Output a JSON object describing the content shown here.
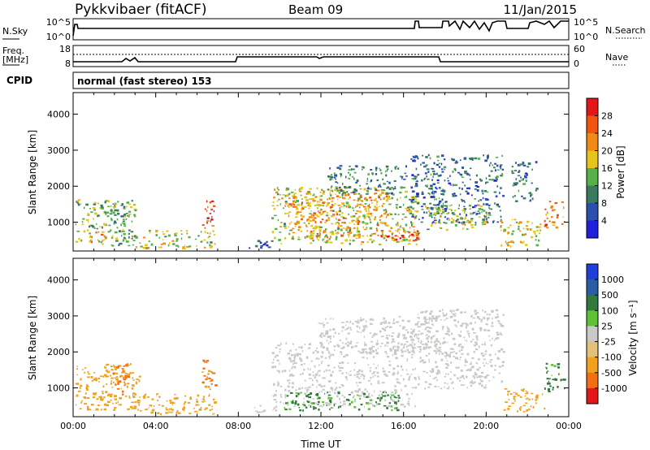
{
  "header": {
    "site": "Pykkvibaer (fitACF)",
    "beam": "Beam 09",
    "date": "11/Jan/2015"
  },
  "top_panel": {
    "left_label": "N.Sky",
    "left_ticks": [
      "10^5",
      "10^0"
    ],
    "right_ticks": [
      "10^5",
      "10^0"
    ],
    "right_label": "N.Search"
  },
  "freq_panel": {
    "left_label_1": "Freq.",
    "left_label_2": "[MHz]",
    "left_ticks": [
      "18",
      "8"
    ],
    "right_ticks": [
      "60",
      "0"
    ],
    "right_label": "Nave"
  },
  "cpid": {
    "label": "CPID",
    "value": "normal (fast stereo) 153"
  },
  "colors": {
    "power": [
      "#1f1fdc",
      "#2b4fae",
      "#3a7a5e",
      "#56b148",
      "#e6c41a",
      "#f08a12",
      "#f0540f",
      "#e3171a"
    ],
    "velocity": [
      "#1f3fd8",
      "#2a5ea4",
      "#2f7a3c",
      "#5fc236",
      "#c9c9c6",
      "#e2c27a",
      "#f0a21c",
      "#f07012",
      "#e3171a"
    ],
    "ground_scatter": "#c8c8c4"
  },
  "chart_data": [
    {
      "type": "heatmap",
      "name": "power",
      "ylabel": "Slant Range [km]",
      "yticks": [
        "1000",
        "2000",
        "3000",
        "4000"
      ],
      "ylim": [
        200,
        4600
      ],
      "xlim": [
        0,
        24
      ],
      "colorbar_label": "Power [dB]",
      "colorbar_ticks": [
        "4",
        "8",
        "12",
        "16",
        "20",
        "24",
        "28"
      ],
      "regions": [
        {
          "t0": 0.1,
          "t1": 3.0,
          "r0": 350,
          "r1": 1650,
          "v": 14
        },
        {
          "t0": 0.8,
          "t1": 1.6,
          "r0": 450,
          "r1": 800,
          "v": 24
        },
        {
          "t0": 1.8,
          "t1": 2.6,
          "r0": 900,
          "r1": 1600,
          "v": 12
        },
        {
          "t0": 2.8,
          "t1": 6.9,
          "r0": 300,
          "r1": 800,
          "v": 16
        },
        {
          "t0": 6.2,
          "t1": 6.8,
          "r0": 850,
          "r1": 1700,
          "v": 26
        },
        {
          "t0": 8.5,
          "t1": 9.7,
          "r0": 300,
          "r1": 550,
          "v": 6
        },
        {
          "t0": 9.6,
          "t1": 16.7,
          "r0": 400,
          "r1": 2000,
          "v": 16
        },
        {
          "t0": 10.4,
          "t1": 15.2,
          "r0": 600,
          "r1": 1900,
          "v": 22
        },
        {
          "t0": 14.8,
          "t1": 16.7,
          "r0": 450,
          "r1": 800,
          "v": 28
        },
        {
          "t0": 12.3,
          "t1": 16.1,
          "r0": 1800,
          "r1": 2600,
          "v": 10
        },
        {
          "t0": 16.3,
          "t1": 20.8,
          "r0": 1000,
          "r1": 2900,
          "v": 8
        },
        {
          "t0": 17.0,
          "t1": 20.0,
          "r0": 800,
          "r1": 1500,
          "v": 16
        },
        {
          "t0": 20.6,
          "t1": 22.6,
          "r0": 350,
          "r1": 1100,
          "v": 18
        },
        {
          "t0": 21.2,
          "t1": 22.4,
          "r0": 1600,
          "r1": 2700,
          "v": 8
        },
        {
          "t0": 22.8,
          "t1": 23.8,
          "r0": 850,
          "r1": 1600,
          "v": 24
        }
      ]
    },
    {
      "type": "heatmap",
      "name": "velocity",
      "ylabel": "Slant Range [km]",
      "yticks": [
        "1000",
        "2000",
        "3000",
        "4000"
      ],
      "ylim": [
        200,
        4600
      ],
      "xlim": [
        0,
        24
      ],
      "xlabel": "Time UT",
      "xticks": [
        "00:00",
        "04:00",
        "08:00",
        "12:00",
        "16:00",
        "20:00",
        "00:00"
      ],
      "colorbar_label": "Velocity [m s⁻¹]",
      "colorbar_ticks": [
        "1000",
        "500",
        "100",
        "25",
        "-25",
        "-100",
        "-500",
        "-1000"
      ],
      "regions": [
        {
          "t0": 0.1,
          "t1": 3.2,
          "r0": 400,
          "r1": 1700,
          "v": -300
        },
        {
          "t0": 1.8,
          "t1": 2.7,
          "r0": 800,
          "r1": 1700,
          "v": -600
        },
        {
          "t0": 3.0,
          "t1": 6.9,
          "r0": 300,
          "r1": 850,
          "v": -150
        },
        {
          "t0": 6.2,
          "t1": 6.9,
          "r0": 900,
          "r1": 1800,
          "v": -500
        },
        {
          "t0": 8.6,
          "t1": 9.8,
          "r0": 300,
          "r1": 550,
          "v": 0
        },
        {
          "t0": 9.6,
          "t1": 16.6,
          "r0": 500,
          "r1": 2300,
          "v": 0
        },
        {
          "t0": 10.2,
          "t1": 15.8,
          "r0": 400,
          "r1": 900,
          "v": 120
        },
        {
          "t0": 11.8,
          "t1": 17.6,
          "r0": 2000,
          "r1": 3000,
          "v": 0
        },
        {
          "t0": 16.5,
          "t1": 20.8,
          "r0": 1000,
          "r1": 3200,
          "v": 0
        },
        {
          "t0": 20.8,
          "t1": 22.8,
          "r0": 350,
          "r1": 1000,
          "v": -150
        },
        {
          "t0": 22.8,
          "t1": 23.8,
          "r0": 900,
          "r1": 1700,
          "v": 150
        }
      ]
    }
  ]
}
